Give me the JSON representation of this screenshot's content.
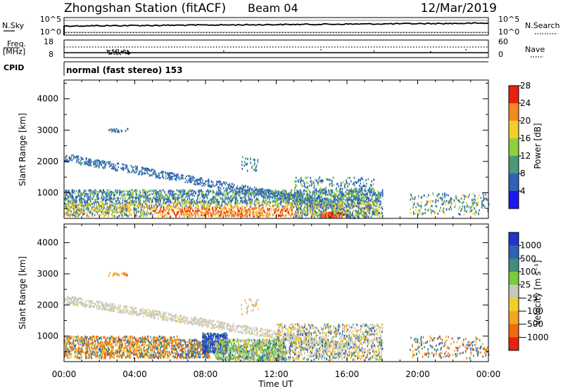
{
  "header": {
    "station": "Zhongshan Station (fitACF)",
    "beam": "Beam 04",
    "date": "12/Mar/2019"
  },
  "strip_panels": {
    "nsky": {
      "left_label": "N.Sky",
      "right_label": "N.Search",
      "tick_top": "10^5",
      "tick_bottom": "10^0"
    },
    "freq": {
      "left_label_1": "Freq.",
      "left_label_2": "[MHz]",
      "left_ticks": [
        "18",
        "8"
      ],
      "right_label": "Nave",
      "right_ticks": [
        "60",
        "0"
      ]
    },
    "cpid": {
      "label": "CPID",
      "mode_text": "normal (fast stereo) 153"
    }
  },
  "chart_data": [
    {
      "type": "heatmap",
      "name": "power",
      "ylabel": "Slant Range [km]",
      "ylim": [
        180,
        4600
      ],
      "yticks": [
        "1000",
        "2000",
        "3000",
        "4000"
      ],
      "xlim": [
        0,
        24
      ],
      "colorbar_label": "Power [dB]",
      "colorbar_ticks": [
        "4",
        "8",
        "12",
        "16",
        "20",
        "24",
        "28"
      ],
      "colors": [
        "#1a1aee",
        "#2f62b7",
        "#4a9a7a",
        "#8fcf3a",
        "#f2cf2a",
        "#f48a1f",
        "#e8220e"
      ]
    },
    {
      "type": "heatmap",
      "name": "velocity",
      "ylabel": "Slant Range [km]",
      "ylim": [
        180,
        4600
      ],
      "yticks": [
        "1000",
        "2000",
        "3000",
        "4000"
      ],
      "xlim": [
        0,
        24
      ],
      "xlabel": "Time UT",
      "xticks": [
        "00:00",
        "04:00",
        "08:00",
        "12:00",
        "16:00",
        "20:00",
        "00:00"
      ],
      "colorbar_label": "Velocity [m s⁻¹]",
      "colorbar_ticks": [
        "1000",
        "500",
        "100",
        "25",
        "−25",
        "−100",
        "−500",
        "−1000"
      ],
      "colors": [
        "#2233cc",
        "#2f62b7",
        "#3e8f7a",
        "#7acc3a",
        "#c8c8c0",
        "#f2cf2a",
        "#f4a51f",
        "#f06a10",
        "#e8220e"
      ]
    }
  ]
}
